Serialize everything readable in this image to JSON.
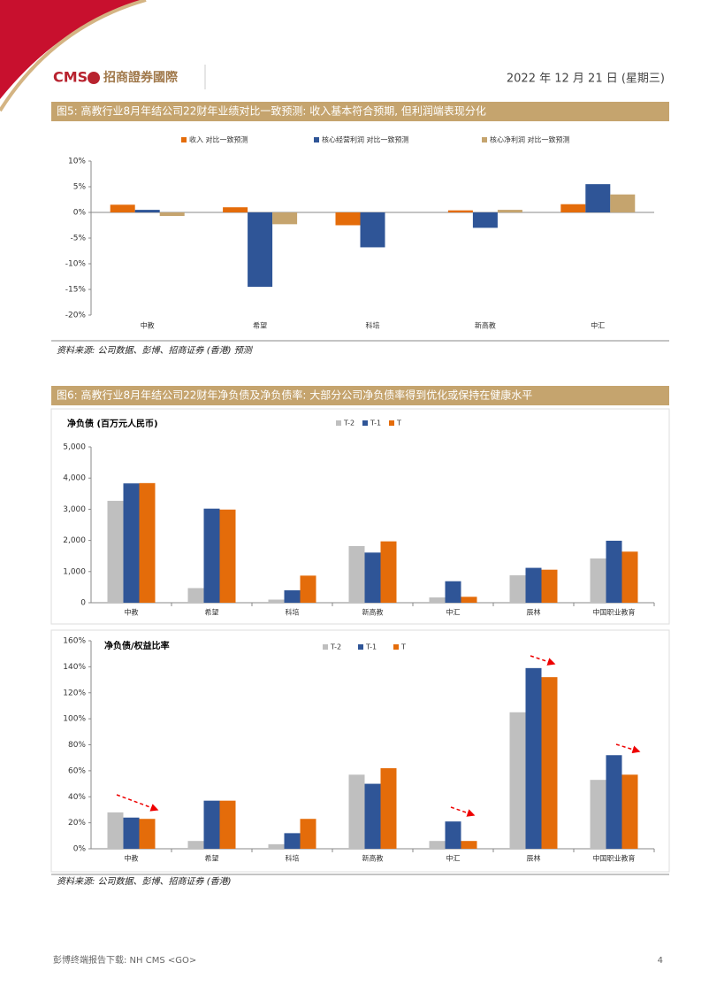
{
  "header": {
    "logo": "CMS",
    "logo_cn": "招商證券國際",
    "date": "2022 年 12 月 21 日 (星期三)"
  },
  "figures": [
    {
      "title": "图5: 高教行业8月年结公司22财年业绩对比一致预测: 收入基本符合预期, 但利润端表现分化",
      "source": "资料来源: 公司数据、彭博、招商证券 (香港) 预测"
    },
    {
      "title": "图6: 高教行业8月年结公司22财年净负债及净负债率: 大部分公司净负债率得到优化或保持在健康水平",
      "source": "资料来源: 公司数据、彭博、招商证券 (香港)"
    }
  ],
  "chart_data": [
    {
      "type": "bar",
      "categories": [
        "中教",
        "希望",
        "科培",
        "新高教",
        "中汇"
      ],
      "series": [
        {
          "name": "收入 对比一致预测",
          "color": "#E46C0A",
          "values": [
            1.5,
            1.0,
            -2.5,
            0.4,
            1.6
          ]
        },
        {
          "name": "核心经营利润 对比一致预测",
          "color": "#2F5597",
          "values": [
            0.5,
            -14.5,
            -6.8,
            -3.0,
            5.5
          ]
        },
        {
          "name": "核心净利润 对比一致预测",
          "color": "#C5A46E",
          "values": [
            -0.7,
            -2.3,
            null,
            0.5,
            3.5
          ]
        }
      ],
      "ylim": [
        -20,
        10
      ],
      "yticks": [
        {
          "value": -20,
          "label": "-20%"
        },
        {
          "value": -15,
          "label": "-15%"
        },
        {
          "value": -10,
          "label": "-10%"
        },
        {
          "value": -5,
          "label": "-5%"
        },
        {
          "value": 0,
          "label": "0%"
        },
        {
          "value": 5,
          "label": "5%"
        },
        {
          "value": 10,
          "label": "10%"
        }
      ],
      "grid": false
    },
    {
      "type": "bar",
      "title": "净负债 (百万元人民币)",
      "categories": [
        "中教",
        "希望",
        "科培",
        "新高教",
        "中汇",
        "辰林",
        "中国职业教育"
      ],
      "series": [
        {
          "name": "T-2",
          "color": "#BFBFBF",
          "values": [
            3270,
            470,
            100,
            1820,
            170,
            880,
            1420
          ]
        },
        {
          "name": "T-1",
          "color": "#2F5597",
          "values": [
            3830,
            3020,
            400,
            1610,
            690,
            1120,
            1990
          ]
        },
        {
          "name": "T",
          "color": "#E46C0A",
          "values": [
            3840,
            2990,
            870,
            1970,
            190,
            1060,
            1640
          ]
        }
      ],
      "ylim": [
        0,
        5000
      ],
      "yticks": [
        0,
        {
          "value": 1000,
          "label": "1,000"
        },
        {
          "value": 2000,
          "label": "2,000"
        },
        {
          "value": 3000,
          "label": "3,000"
        },
        {
          "value": 4000,
          "label": "4,000"
        },
        {
          "value": 5000,
          "label": "5,000"
        }
      ],
      "grid": false
    },
    {
      "type": "bar",
      "title": "净负债/权益比率",
      "categories": [
        "中教",
        "希望",
        "科培",
        "新高教",
        "中汇",
        "辰林",
        "中国职业教育"
      ],
      "series": [
        {
          "name": "T-2",
          "color": "#BFBFBF",
          "values": [
            28,
            6,
            3.5,
            57,
            6,
            105,
            53
          ]
        },
        {
          "name": "T-1",
          "color": "#2F5597",
          "values": [
            24,
            37,
            12,
            50,
            21,
            139,
            72
          ]
        },
        {
          "name": "T",
          "color": "#E46C0A",
          "values": [
            23,
            37,
            23,
            62,
            6,
            132,
            57
          ]
        }
      ],
      "ylim": [
        0,
        160
      ],
      "yticks": [
        {
          "value": 0,
          "label": "0%"
        },
        {
          "value": 20,
          "label": "20%"
        },
        {
          "value": 40,
          "label": "40%"
        },
        {
          "value": 60,
          "label": "60%"
        },
        {
          "value": 80,
          "label": "80%"
        },
        {
          "value": 100,
          "label": "100%"
        },
        {
          "value": 120,
          "label": "120%"
        },
        {
          "value": 140,
          "label": "140%"
        },
        {
          "value": 160,
          "label": "160%"
        }
      ],
      "grid": false
    }
  ],
  "footer": {
    "left": "彭博终端报告下载: NH CMS <GO>",
    "page": "4"
  }
}
